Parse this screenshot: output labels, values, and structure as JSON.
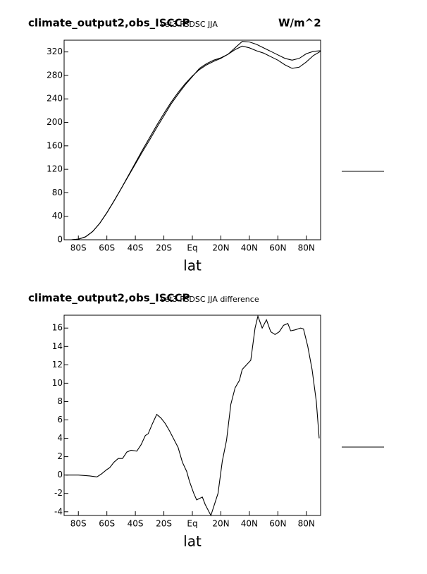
{
  "chart_data": [
    {
      "type": "line",
      "title": "climate_output2,obs_ISCCP",
      "subtitle": "set3 FSDSC JJA",
      "units": "W/m^2",
      "xlabel": "lat",
      "x": [
        -90,
        -85,
        -80,
        -75,
        -70,
        -65,
        -60,
        -55,
        -50,
        -45,
        -40,
        -35,
        -30,
        -25,
        -20,
        -15,
        -10,
        -5,
        0,
        5,
        10,
        15,
        20,
        25,
        30,
        35,
        40,
        45,
        50,
        55,
        60,
        65,
        70,
        75,
        80,
        85,
        90
      ],
      "series": [
        {
          "color": "#000000",
          "values": [
            0,
            0,
            1,
            5,
            14,
            28,
            46,
            66,
            87,
            109,
            131,
            153,
            174,
            195,
            215,
            234,
            251,
            266,
            279,
            290,
            298,
            304,
            309,
            316,
            327,
            338,
            337,
            333,
            327,
            321,
            315,
            309,
            306,
            309,
            317,
            321,
            322
          ]
        },
        {
          "color": "#000000",
          "values": [
            0,
            0,
            1,
            5,
            14,
            28,
            46,
            66,
            87,
            108,
            129,
            150,
            170,
            191,
            211,
            231,
            248,
            264,
            278,
            292,
            300,
            306,
            310,
            316,
            324,
            330,
            327,
            322,
            318,
            312,
            306,
            298,
            292,
            294,
            303,
            314,
            321
          ]
        }
      ],
      "xlim": [
        -90,
        90
      ],
      "xticks": [
        {
          "value": -80,
          "label": "80S"
        },
        {
          "value": -60,
          "label": "60S"
        },
        {
          "value": -40,
          "label": "40S"
        },
        {
          "value": -20,
          "label": "20S"
        },
        {
          "value": 0,
          "label": "Eq"
        },
        {
          "value": 20,
          "label": "20N"
        },
        {
          "value": 40,
          "label": "40N"
        },
        {
          "value": 60,
          "label": "60N"
        },
        {
          "value": 80,
          "label": "80N"
        }
      ],
      "ylim": [
        0,
        340
      ],
      "yticks": [
        0,
        40,
        80,
        120,
        160,
        200,
        240,
        280,
        320
      ]
    },
    {
      "type": "line",
      "title": "climate_output2,obs_ISCCP",
      "subtitle": "set3 FSDSC JJA difference",
      "xlabel": "lat",
      "x": [
        -89,
        -80,
        -72,
        -67,
        -64,
        -60,
        -58,
        -55,
        -52,
        -49,
        -46,
        -43,
        -39,
        -36,
        -33,
        -31,
        -28,
        -25,
        -22,
        -19,
        -16,
        -13,
        -10,
        -7,
        -4,
        -2,
        1,
        3,
        7,
        9,
        13,
        18,
        21,
        24,
        27,
        30,
        33,
        35,
        41,
        44,
        46,
        49,
        52,
        55,
        58,
        61,
        64,
        67,
        69,
        72,
        76,
        78,
        81,
        84,
        87,
        89
      ],
      "values": [
        0,
        0,
        -0.1,
        -0.2,
        0.1,
        0.6,
        0.8,
        1.4,
        1.8,
        1.8,
        2.5,
        2.7,
        2.6,
        3.3,
        4.3,
        4.5,
        5.6,
        6.6,
        6.2,
        5.6,
        4.8,
        3.9,
        3,
        1.4,
        0.4,
        -0.7,
        -2,
        -2.7,
        -2.4,
        -3.2,
        -4.4,
        -2,
        1.5,
        3.8,
        7.7,
        9.5,
        10.3,
        11.5,
        12.5,
        16,
        17.3,
        16,
        16.9,
        15.6,
        15.3,
        15.6,
        16.3,
        16.5,
        15.7,
        15.8,
        16,
        15.9,
        14,
        11.5,
        8,
        4
      ],
      "color": "#000000",
      "xlim": [
        -90,
        90
      ],
      "xticks": [
        {
          "value": -80,
          "label": "80S"
        },
        {
          "value": -60,
          "label": "60S"
        },
        {
          "value": -40,
          "label": "40S"
        },
        {
          "value": -20,
          "label": "20S"
        },
        {
          "value": 0,
          "label": "Eq"
        },
        {
          "value": 20,
          "label": "20N"
        },
        {
          "value": 40,
          "label": "40N"
        },
        {
          "value": 60,
          "label": "60N"
        },
        {
          "value": 80,
          "label": "80N"
        }
      ],
      "ylim": [
        -4.4,
        17.4
      ],
      "yticks": [
        -4,
        -2,
        0,
        2,
        4,
        6,
        8,
        10,
        12,
        14,
        16
      ]
    }
  ]
}
